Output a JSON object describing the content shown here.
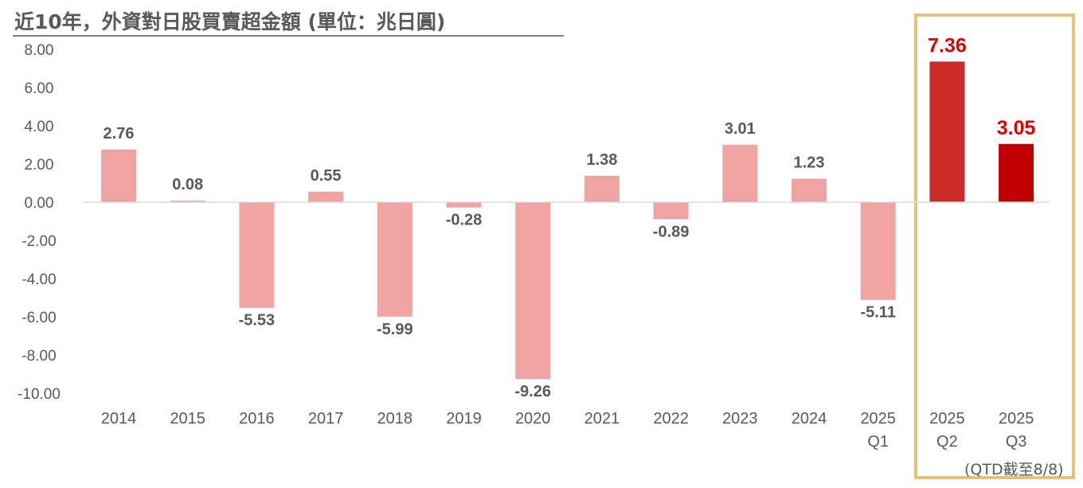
{
  "chart_data": {
    "type": "bar",
    "title": "近10年，外資對日股買賣超金額 (單位：兆日圓)",
    "categories": [
      [
        "2014"
      ],
      [
        "2015"
      ],
      [
        "2016"
      ],
      [
        "2017"
      ],
      [
        "2018"
      ],
      [
        "2019"
      ],
      [
        "2020"
      ],
      [
        "2021"
      ],
      [
        "2022"
      ],
      [
        "2023"
      ],
      [
        "2024"
      ],
      [
        "2025",
        "Q1"
      ],
      [
        "2025",
        "Q2"
      ],
      [
        "2025",
        "Q3"
      ]
    ],
    "values": [
      2.76,
      0.08,
      -5.53,
      0.55,
      -5.99,
      -0.28,
      -9.26,
      1.38,
      -0.89,
      3.01,
      1.23,
      -5.11,
      7.36,
      3.05
    ],
    "data_labels": [
      "2.76",
      "0.08",
      "-5.53",
      "0.55",
      "-5.99",
      "-0.28",
      "-9.26",
      "1.38",
      "-0.89",
      "3.01",
      "1.23",
      "-5.11",
      "7.36",
      "3.05"
    ],
    "highlighted": [
      false,
      false,
      false,
      false,
      false,
      false,
      false,
      false,
      false,
      false,
      false,
      false,
      true,
      true
    ],
    "yticks": [
      "8.00",
      "6.00",
      "4.00",
      "2.00",
      "0.00",
      "-2.00",
      "-4.00",
      "-6.00",
      "-8.00",
      "-10.00"
    ],
    "ylim": [
      -10,
      8
    ],
    "grid": false,
    "legend": "none",
    "footnote": "(QTD截至8/8)",
    "colors": {
      "bar": "#f0a4a2",
      "highlight_q2": "#cc2a27",
      "highlight_q3": "#c00000",
      "label": "#595959",
      "highlight_label": "#e00000",
      "axis": "#d9d9d9",
      "box": "#e3c27a"
    }
  }
}
